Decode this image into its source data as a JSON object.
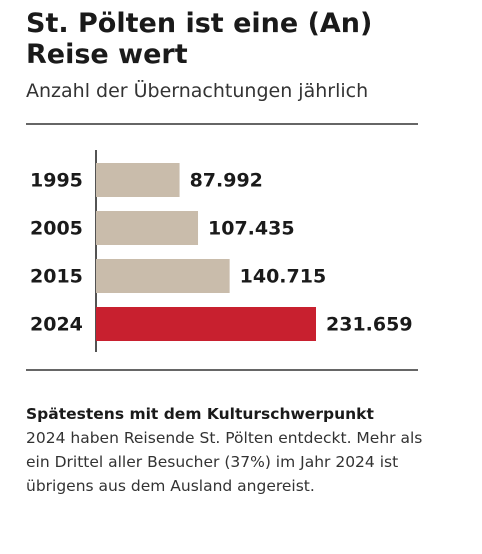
{
  "chart_data": {
    "type": "bar",
    "orientation": "horizontal",
    "title": "St. Pölten ist eine (An) Reise wert",
    "subtitle": "Anzahl der Übernachtungen jährlich",
    "categories": [
      "1995",
      "2005",
      "2015",
      "2024"
    ],
    "values": [
      87992,
      107435,
      140715,
      231659
    ],
    "value_labels": [
      "87.992",
      "107.435",
      "140.715",
      "231.659"
    ],
    "colors": [
      "#c9bcab",
      "#c9bcab",
      "#c9bcab",
      "#c8202f"
    ],
    "annotation": {
      "heading": "Spätestens mit dem Kulturschwerpunkt",
      "text": "2024 haben Reisende St. Pölten entdeckt. Mehr als ein Drittel aller Besucher (37%) im Jahr 2024 ist übrigens aus dem Ausland angereist."
    }
  }
}
